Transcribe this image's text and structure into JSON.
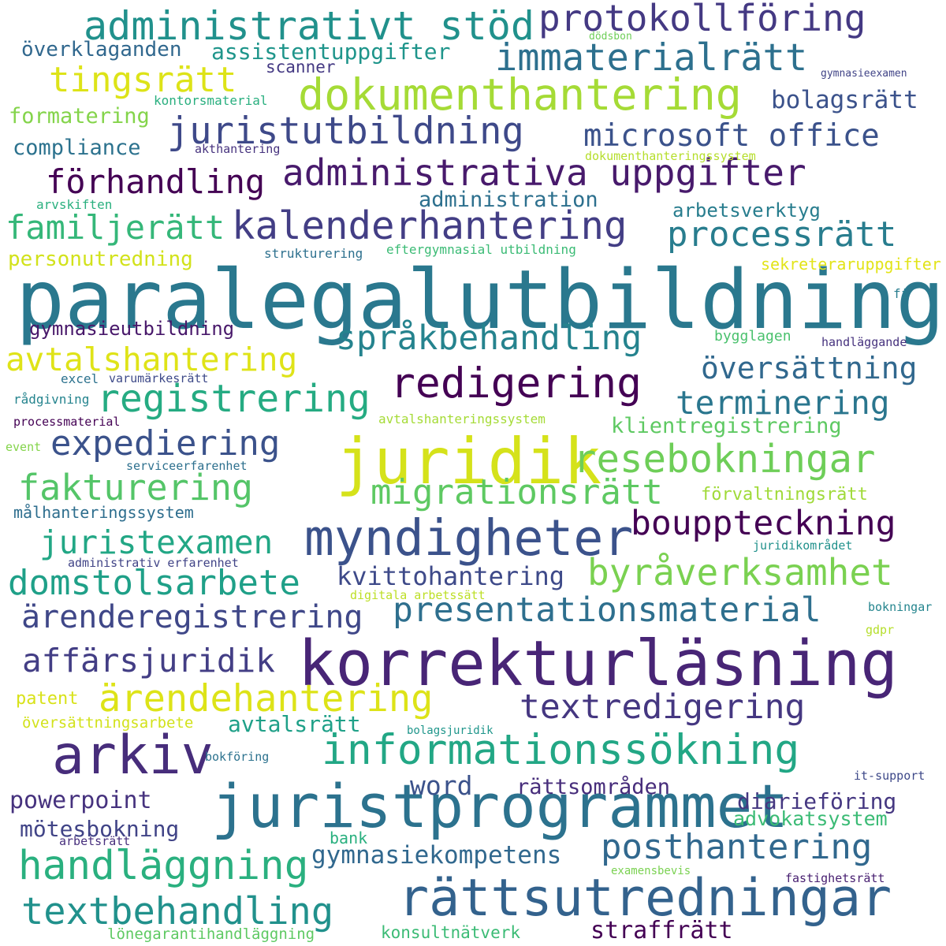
{
  "words": [
    {
      "text": "paralegalutbildning",
      "color": "#2a788e"
    },
    {
      "text": "korrekturläsning",
      "color": "#482576"
    },
    {
      "text": "juristprogrammet",
      "color": "#2c728e"
    },
    {
      "text": "juridik",
      "color": "#d5e21a"
    },
    {
      "text": "rättsutredningar",
      "color": "#33628d"
    },
    {
      "text": "arkiv",
      "color": "#472d7b"
    },
    {
      "text": "myndigheter",
      "color": "#3b528b"
    },
    {
      "text": "informationssökning",
      "color": "#22a785"
    },
    {
      "text": "administrativt stöd",
      "color": "#21918c"
    },
    {
      "text": "dokumenthantering",
      "color": "#a5db36"
    },
    {
      "text": "protokollföring",
      "color": "#443983"
    },
    {
      "text": "immaterialrätt",
      "color": "#2d708e"
    },
    {
      "text": "tingsrätt",
      "color": "#dde318"
    },
    {
      "text": "juristutbildning",
      "color": "#3e4989"
    },
    {
      "text": "administrativa uppgifter",
      "color": "#481a6c"
    },
    {
      "text": "kalenderhantering",
      "color": "#433e85"
    },
    {
      "text": "redigering",
      "color": "#440154"
    },
    {
      "text": "resebokningar",
      "color": "#6ece58"
    },
    {
      "text": "domstolsarbete",
      "color": "#1fa088"
    },
    {
      "text": "byråverksamhet",
      "color": "#7ad151"
    },
    {
      "text": "handläggning",
      "color": "#2ab07f"
    },
    {
      "text": "textbehandling",
      "color": "#21918c"
    },
    {
      "text": "posthantering",
      "color": "#31688e"
    },
    {
      "text": "processrätt",
      "color": "#287d8e"
    },
    {
      "text": "språkbehandling",
      "color": "#25838e"
    },
    {
      "text": "registrering",
      "color": "#25ab82"
    },
    {
      "text": "migrationsrätt",
      "color": "#5ec962"
    },
    {
      "text": "bouppteckning",
      "color": "#440154"
    },
    {
      "text": "ärendehantering",
      "color": "#dde318"
    },
    {
      "text": "presentationsmaterial",
      "color": "#2e6f8e"
    },
    {
      "text": "ärenderegistrering",
      "color": "#3f4788"
    },
    {
      "text": "textredigering",
      "color": "#453781"
    },
    {
      "text": "microsoft office",
      "color": "#3b528b"
    },
    {
      "text": "förhandling",
      "color": "#440154"
    },
    {
      "text": "familjerätt",
      "color": "#35b779"
    },
    {
      "text": "avtalshantering",
      "color": "#dfe318"
    },
    {
      "text": "fakturering",
      "color": "#54c568"
    },
    {
      "text": "expediering",
      "color": "#3b528b"
    },
    {
      "text": "juristexamen",
      "color": "#22a785"
    },
    {
      "text": "affärsjuridik",
      "color": "#433e85"
    },
    {
      "text": "översättning",
      "color": "#31688e"
    },
    {
      "text": "terminering",
      "color": "#2a768e"
    },
    {
      "text": "bolagsrätt",
      "color": "#3b528b"
    },
    {
      "text": "kvittohantering",
      "color": "#3e4a89"
    },
    {
      "text": "gymnasiekompetens",
      "color": "#31688e"
    },
    {
      "text": "avtalsrätt",
      "color": "#1fa088"
    },
    {
      "text": "word",
      "color": "#3b528b"
    },
    {
      "text": "rättsområden",
      "color": "#472d7b"
    },
    {
      "text": "diarieföring",
      "color": "#453781"
    },
    {
      "text": "powerpoint",
      "color": "#46327e"
    },
    {
      "text": "mötesbokning",
      "color": "#414487"
    },
    {
      "text": "advokatsystem",
      "color": "#3bbb75"
    },
    {
      "text": "straffrätt",
      "color": "#440154"
    },
    {
      "text": "assistentuppgifter",
      "color": "#1f958b"
    },
    {
      "text": "överklaganden",
      "color": "#31688e"
    },
    {
      "text": "scanner",
      "color": "#443983"
    },
    {
      "text": "formatering",
      "color": "#84d44b"
    },
    {
      "text": "compliance",
      "color": "#2c728e"
    },
    {
      "text": "administration",
      "color": "#2d708e"
    },
    {
      "text": "arbetsverktyg",
      "color": "#287d8e"
    },
    {
      "text": "personutredning",
      "color": "#d2e21b"
    },
    {
      "text": "gymnasieutbildning",
      "color": "#48186a"
    },
    {
      "text": "klientregistrering",
      "color": "#5ec962"
    },
    {
      "text": "förvaltningsrätt",
      "color": "#a0da39"
    },
    {
      "text": "målhanteringssystem",
      "color": "#2e6e8e"
    },
    {
      "text": "patent",
      "color": "#d8e219"
    },
    {
      "text": "översättningsarbete",
      "color": "#d2e21b"
    },
    {
      "text": "bank",
      "color": "#2ab07f"
    },
    {
      "text": "konsultnätverk",
      "color": "#3bbb75"
    },
    {
      "text": "lönegarantihandläggning",
      "color": "#5ec962"
    },
    {
      "text": "sekreteraruppgifter",
      "color": "#e2e418"
    },
    {
      "text": "bygglagen",
      "color": "#4ac16d"
    },
    {
      "text": "kontorsmaterial",
      "color": "#29af7f"
    },
    {
      "text": "akthantering",
      "color": "#46327e"
    },
    {
      "text": "dokumenthanteringssystem",
      "color": "#b5de2b"
    },
    {
      "text": "arvskiften",
      "color": "#2ab07f"
    },
    {
      "text": "strukturering",
      "color": "#2d708e"
    },
    {
      "text": "eftergymnasial utbildning",
      "color": "#3bbb75"
    },
    {
      "text": "excel",
      "color": "#2c728e"
    },
    {
      "text": "varumärkesrätt",
      "color": "#3e4a89"
    },
    {
      "text": "rådgivning",
      "color": "#25848e"
    },
    {
      "text": "processmaterial",
      "color": "#440154"
    },
    {
      "text": "avtalshanteringssystem",
      "color": "#a5db36"
    },
    {
      "text": "event",
      "color": "#84d44b"
    },
    {
      "text": "serviceerfarenhet",
      "color": "#2d708e"
    },
    {
      "text": "administrativ erfarenhet",
      "color": "#414487"
    },
    {
      "text": "digitala arbetssätt",
      "color": "#bddf26"
    },
    {
      "text": "juridikområdet",
      "color": "#21918c"
    },
    {
      "text": "bokningar",
      "color": "#25858e"
    },
    {
      "text": "gdpr",
      "color": "#b5de2b"
    },
    {
      "text": "handläggande",
      "color": "#46327e"
    },
    {
      "text": "fi",
      "color": "#287d8e"
    },
    {
      "text": "gymnasieexamen",
      "color": "#414487"
    },
    {
      "text": "dödsbon",
      "color": "#6ece58"
    },
    {
      "text": "bolagsjuridik",
      "color": "#1f968b"
    },
    {
      "text": "bokföring",
      "color": "#2c728e"
    },
    {
      "text": "it-support",
      "color": "#3e4989"
    },
    {
      "text": "arbetsrätt",
      "color": "#472f7d"
    },
    {
      "text": "examensbevis",
      "color": "#7ad151"
    },
    {
      "text": "fastighetsrätt",
      "color": "#482071"
    }
  ]
}
